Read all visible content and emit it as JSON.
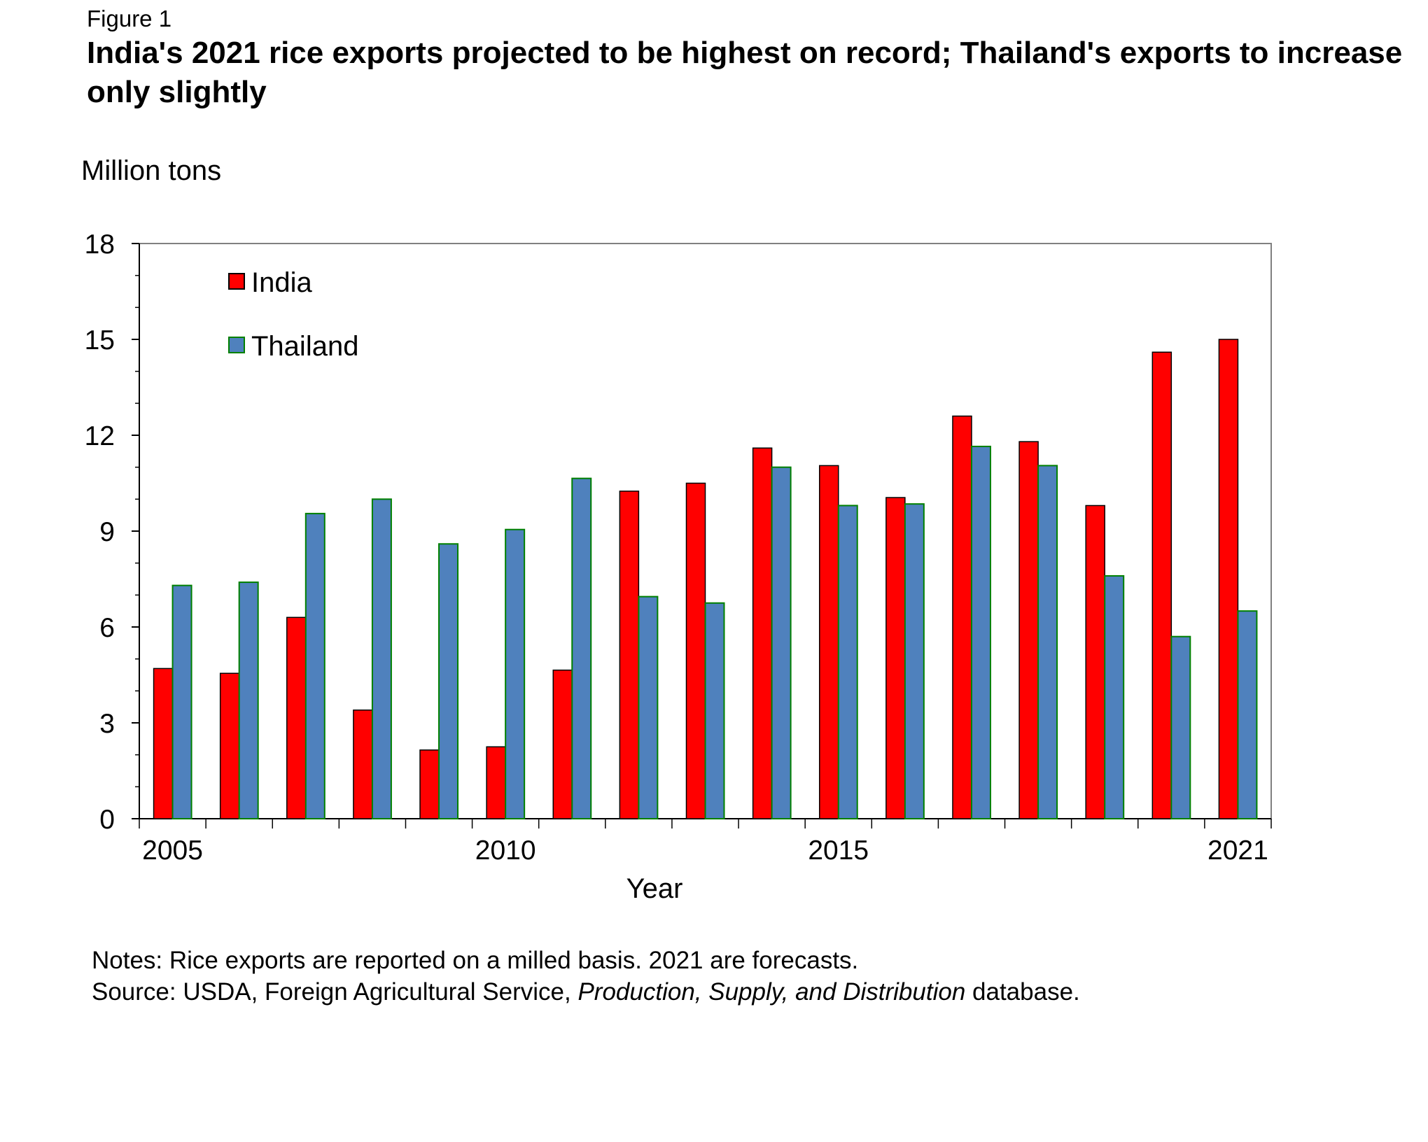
{
  "figure_label": "Figure 1",
  "title": "India's 2021 rice exports projected to be highest on record; Thailand's exports to increase only slightly",
  "chart_data": {
    "type": "bar",
    "title": "India's 2021 rice exports projected to be highest on record; Thailand's exports to increase only slightly",
    "ylabel": "Million tons",
    "xlabel": "Year",
    "ylim": [
      0,
      18
    ],
    "yticks": [
      0,
      3,
      6,
      9,
      12,
      15,
      18
    ],
    "xtick_labels": [
      "2005",
      "2010",
      "2015",
      "2021"
    ],
    "categories": [
      "2005",
      "2006",
      "2007",
      "2008",
      "2009",
      "2010",
      "2011",
      "2012",
      "2013",
      "2014",
      "2015",
      "2016",
      "2017",
      "2018",
      "2019",
      "2020",
      "2021"
    ],
    "series": [
      {
        "name": "India",
        "color": "#ff0000",
        "values": [
          4.7,
          4.55,
          6.3,
          3.4,
          2.15,
          2.25,
          4.65,
          10.25,
          10.5,
          11.6,
          11.05,
          10.05,
          12.6,
          11.8,
          9.8,
          14.6,
          15.0
        ]
      },
      {
        "name": "Thailand",
        "color": "#4f81bd",
        "values": [
          7.3,
          7.4,
          9.55,
          10.0,
          8.6,
          9.05,
          10.65,
          6.95,
          6.75,
          11.0,
          9.8,
          9.85,
          11.65,
          11.05,
          7.6,
          5.7,
          6.5
        ]
      }
    ],
    "legend_position": "top-left",
    "grid": false
  },
  "notes": {
    "line1": "Notes: Rice exports are reported on a milled basis. 2021 are forecasts.",
    "source_prefix": "Source: USDA, Foreign Agricultural Service, ",
    "source_italic": "Production, Supply, and Distribution",
    "source_suffix": " database."
  }
}
